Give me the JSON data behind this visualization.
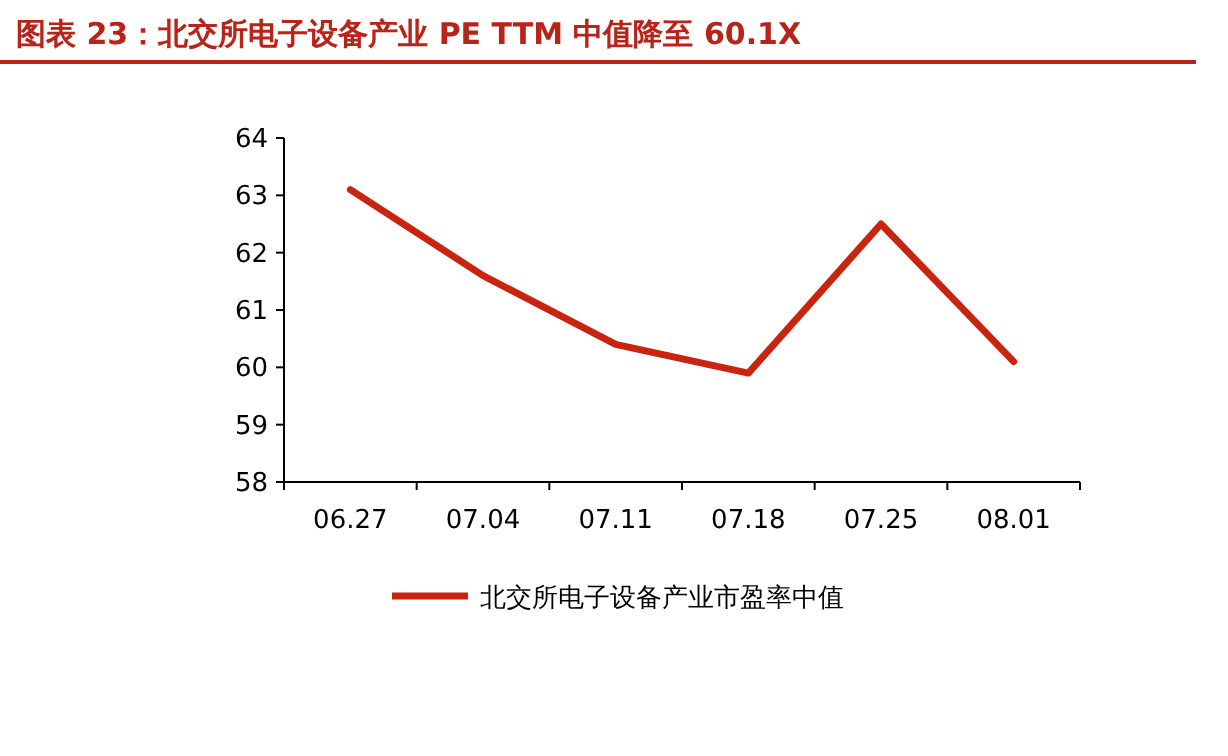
{
  "chart_data": {
    "type": "line",
    "title": "图表 23：北交所电子设备产业 PE TTM 中值降至 60.1X",
    "categories": [
      "06.27",
      "07.04",
      "07.11",
      "07.18",
      "07.25",
      "08.01"
    ],
    "series": [
      {
        "name": "北交所电子设备产业市盈率中值",
        "color": "#c8240f",
        "values": [
          63.1,
          61.6,
          60.4,
          59.9,
          62.5,
          60.1
        ]
      }
    ],
    "ylim": [
      58,
      64
    ],
    "yticks": [
      58,
      59,
      60,
      61,
      62,
      63,
      64
    ],
    "legend": "bottom"
  }
}
